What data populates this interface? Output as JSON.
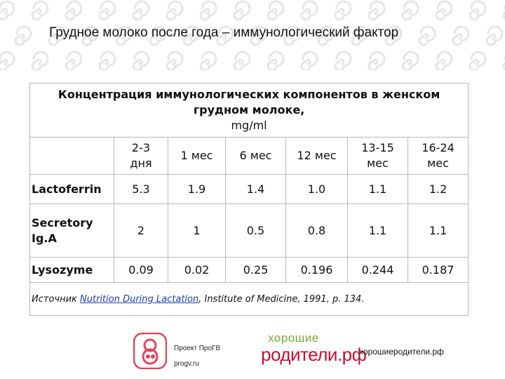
{
  "slide": {
    "title": "Грудное молоко после года – иммунологический фактор"
  },
  "table": {
    "caption_line1": "Концентрация иммунологических компонентов в женском",
    "caption_line2": "грудном молоке,",
    "caption_unit": "mg/ml",
    "columns": [
      {
        "line1": "2-3",
        "line2": "дня"
      },
      {
        "line1": "1 мес",
        "line2": ""
      },
      {
        "line1": "6 мес",
        "line2": ""
      },
      {
        "line1": "12 мес",
        "line2": ""
      },
      {
        "line1": "13-15",
        "line2": "мес"
      },
      {
        "line1": "16-24",
        "line2": "мес"
      }
    ],
    "rows": [
      {
        "label_line1": "Lactoferrin",
        "label_line2": "",
        "values": [
          "5.3",
          "1.9",
          "1.4",
          "1.0",
          "1.1",
          "1.2"
        ]
      },
      {
        "label_line1": "Secretory",
        "label_line2": "Ig.A",
        "values": [
          "2",
          "1",
          "0.5",
          "0.8",
          "1.1",
          "1.1"
        ]
      },
      {
        "label_line1": "Lysozyme",
        "label_line2": "",
        "values": [
          "0.09",
          "0.02",
          "0.25",
          "0.196",
          "0.244",
          "0.187"
        ]
      }
    ],
    "source_prefix": "Источник ",
    "source_link": "Nutrition During Lactation",
    "source_suffix": ", Institute of Medicine, 1991, p. 134."
  },
  "footer": {
    "progv_line1": "Проект ПроГВ",
    "progv_line2": "progv.ru",
    "hr_logo_top": "хорошие",
    "hr_logo_bottom": "родители.рф",
    "site": "хорошиеродители.рф"
  },
  "colors": {
    "swirl": "#e6e6e6",
    "link": "#1a3fb3",
    "progv_brand": "#e0455d",
    "hr_green": "#7aa83a",
    "hr_red": "#c8102e"
  }
}
